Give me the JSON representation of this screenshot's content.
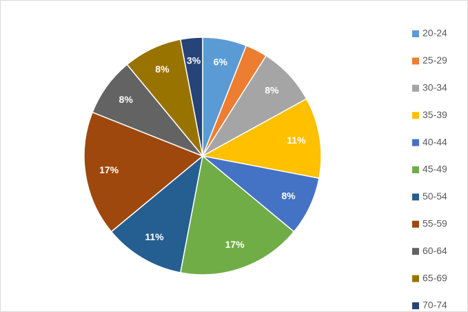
{
  "chart_data": {
    "type": "pie",
    "categories": [
      "20-24",
      "25-29",
      "30-34",
      "35-39",
      "40-44",
      "45-49",
      "50-54",
      "55-59",
      "60-64",
      "65-69",
      "70-74"
    ],
    "values": [
      6,
      3,
      8,
      11,
      8,
      17,
      11,
      17,
      8,
      8,
      3
    ],
    "value_labels": [
      "6%",
      null,
      "8%",
      "11%",
      "8%",
      "17%",
      "11%",
      "17%",
      "8%",
      "8%",
      "3%"
    ],
    "colors": [
      "#5b9bd5",
      "#ed7d31",
      "#a5a5a5",
      "#ffc000",
      "#4472c4",
      "#70ad47",
      "#255e91",
      "#9e480e",
      "#636363",
      "#997300",
      "#264478"
    ],
    "legend": "right"
  }
}
